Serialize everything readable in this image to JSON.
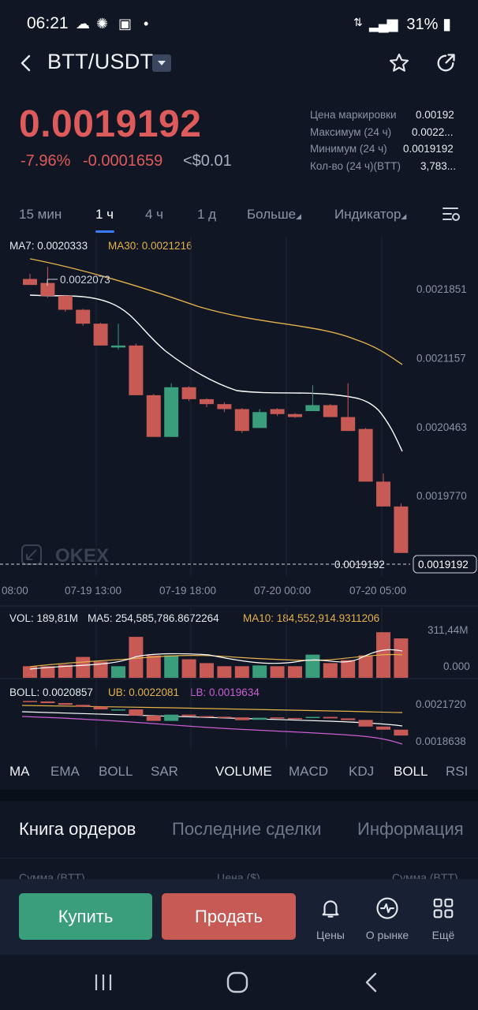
{
  "status_bar": {
    "time": "06:21",
    "battery": "31%"
  },
  "header": {
    "pair": "BTT/USDT"
  },
  "ticker": {
    "price": "0.0019192",
    "change_pct": "-7.96%",
    "change_abs": "-0.0001659",
    "usd_price": "<$0.01",
    "stats": [
      {
        "label": "Цена маркировки",
        "value": "0.00192"
      },
      {
        "label": "Максимум (24 ч)",
        "value": "0.0022..."
      },
      {
        "label": "Минимум (24 ч)",
        "value": "0.0019192"
      },
      {
        "label": "Кол-во (24 ч)(BTT)",
        "value": "3,783..."
      }
    ]
  },
  "timeframes": [
    "15 мин",
    "1 ч",
    "4 ч",
    "1 д",
    "Больше",
    "Индикатор"
  ],
  "chart_data": {
    "type": "candlestick",
    "ma_legend": {
      "ma7": "MA7: 0.0020333",
      "ma30": "MA30: 0.0021216"
    },
    "y_ticks": [
      "0.0021851",
      "0.0021157",
      "0.0020463",
      "0.0019770"
    ],
    "current_price_label": "0.0019192",
    "last_price_badge": "0.0019192",
    "high_marker": "0.0022073",
    "x_ticks": [
      "08:00",
      "07-19 13:00",
      "07-19 18:00",
      "07-20 00:00",
      "07-20 05:00"
    ],
    "watermark": "OKEX",
    "candles": [
      {
        "o": 0.002195,
        "h": 0.0022,
        "l": 0.002189,
        "c": 0.002189
      },
      {
        "o": 0.002191,
        "h": 0.0022073,
        "l": 0.002176,
        "c": 0.002178
      },
      {
        "o": 0.002178,
        "h": 0.002179,
        "l": 0.002162,
        "c": 0.002164
      },
      {
        "o": 0.002164,
        "h": 0.002165,
        "l": 0.002148,
        "c": 0.00215
      },
      {
        "o": 0.00215,
        "h": 0.002151,
        "l": 0.002128,
        "c": 0.002128
      },
      {
        "o": 0.002126,
        "h": 0.00215,
        "l": 0.002124,
        "c": 0.002128
      },
      {
        "o": 0.002128,
        "h": 0.00213,
        "l": 0.002078,
        "c": 0.002078
      },
      {
        "o": 0.002078,
        "h": 0.002079,
        "l": 0.002036,
        "c": 0.002036
      },
      {
        "o": 0.002036,
        "h": 0.00209,
        "l": 0.002036,
        "c": 0.002086
      },
      {
        "o": 0.002086,
        "h": 0.002087,
        "l": 0.002072,
        "c": 0.002074
      },
      {
        "o": 0.002074,
        "h": 0.002075,
        "l": 0.002066,
        "c": 0.002069
      },
      {
        "o": 0.002069,
        "h": 0.002071,
        "l": 0.002061,
        "c": 0.002064
      },
      {
        "o": 0.002064,
        "h": 0.002065,
        "l": 0.00204,
        "c": 0.002042
      },
      {
        "o": 0.002045,
        "h": 0.002064,
        "l": 0.002045,
        "c": 0.002061
      },
      {
        "o": 0.002064,
        "h": 0.002065,
        "l": 0.002057,
        "c": 0.002059
      },
      {
        "o": 0.002059,
        "h": 0.00206,
        "l": 0.002055,
        "c": 0.002056
      },
      {
        "o": 0.002062,
        "h": 0.002088,
        "l": 0.002062,
        "c": 0.002068
      },
      {
        "o": 0.002068,
        "h": 0.002069,
        "l": 0.002056,
        "c": 0.002056
      },
      {
        "o": 0.002056,
        "h": 0.00209,
        "l": 0.002042,
        "c": 0.002042
      },
      {
        "o": 0.002044,
        "h": 0.002045,
        "l": 0.001991,
        "c": 0.001991
      },
      {
        "o": 0.001991,
        "h": 0.001999,
        "l": 0.001966,
        "c": 0.001966
      },
      {
        "o": 0.001966,
        "h": 0.001969,
        "l": 0.0019192,
        "c": 0.0019192
      }
    ],
    "volume": {
      "legend": {
        "vol": "VOL: 189,81M",
        "ma5": "MA5: 254,585,786.8672264",
        "ma10": "MA10: 184,552,914.9311206"
      },
      "y_ticks": [
        "311,44M",
        "0.000"
      ],
      "values": [
        75,
        75,
        85,
        135,
        105,
        75,
        265,
        145,
        145,
        120,
        95,
        75,
        75,
        80,
        75,
        75,
        150,
        95,
        115,
        145,
        295,
        255
      ]
    },
    "boll": {
      "legend": {
        "boll": "BOLL: 0.0020857",
        "ub": "UB: 0.0022081",
        "lb": "LB: 0.0019634"
      },
      "y_ticks": [
        "0.0021720",
        "0.0018638"
      ]
    }
  },
  "indicator_tabs": [
    "MA",
    "EMA",
    "BOLL",
    "SAR",
    "VOLUME",
    "MACD",
    "KDJ",
    "BOLL",
    "RSI"
  ],
  "book_tabs": [
    "Книга ордеров",
    "Последние сделки",
    "Информация"
  ],
  "book_columns": [
    "Сумма (BTT)",
    "Цена ($)",
    "Сумма (BTT)"
  ],
  "actions": {
    "buy": "Купить",
    "sell": "Продать",
    "prices": "Цены",
    "market": "О рынке",
    "more": "Ещё"
  },
  "colors": {
    "up": "#3a9e7c",
    "down": "#c85a56",
    "ma7": "#ffffff",
    "ma30": "#e4b24a",
    "accent": "#3b7cf6"
  }
}
